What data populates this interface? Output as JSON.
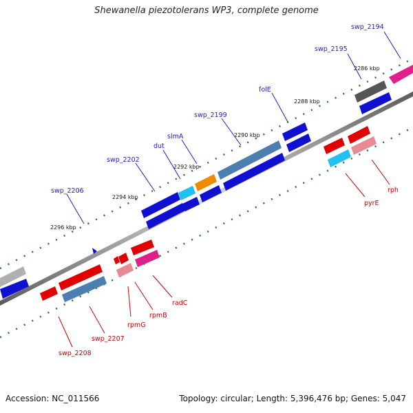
{
  "title": "Shewanella piezotolerans WP3, complete genome",
  "footer": {
    "accession": "Accession: NC_011566",
    "summary": "Topology: circular; Length: 5,396,476 bp; Genes: 5,047"
  },
  "colors": {
    "forward_label": "#1a1ad8",
    "reverse_label": "#cc0000",
    "backbone": "#7a7a7a",
    "ticks": "#1e7a1e"
  },
  "ruler": [
    {
      "label": "2286 kbp"
    },
    {
      "label": "2288 kbp"
    },
    {
      "label": "2290 kbp"
    },
    {
      "label": "2292 kbp"
    },
    {
      "label": "2294 kbp"
    },
    {
      "label": "2296 kbp"
    }
  ],
  "genes": {
    "forward": [
      {
        "name": "swp_2194"
      },
      {
        "name": "swp_2195"
      },
      {
        "name": "folE"
      },
      {
        "name": "swp_2199"
      },
      {
        "name": "slmA"
      },
      {
        "name": "dut"
      },
      {
        "name": "swp_2202"
      },
      {
        "name": "swp_2206"
      }
    ],
    "reverse": [
      {
        "name": "rph"
      },
      {
        "name": "pyrE"
      },
      {
        "name": "radC"
      },
      {
        "name": "rpmB"
      },
      {
        "name": "rpmG"
      },
      {
        "name": "swp_2207"
      },
      {
        "name": "swp_2208"
      }
    ]
  }
}
